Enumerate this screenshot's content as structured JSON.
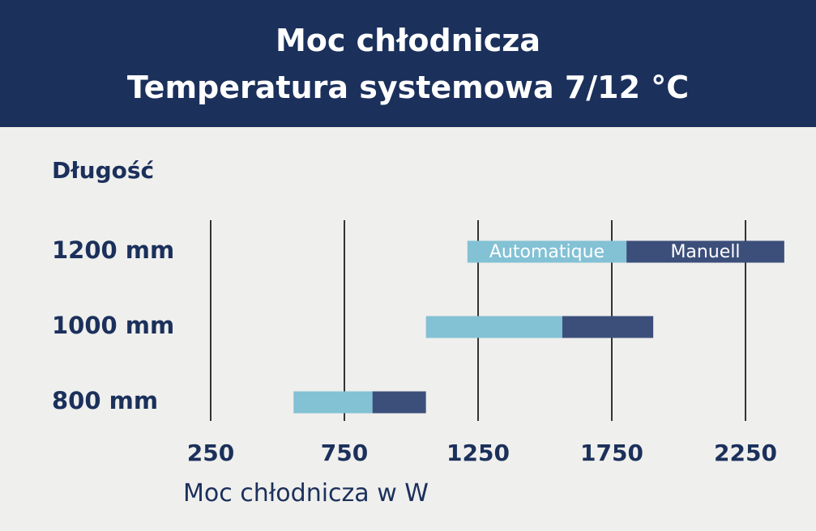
{
  "header": {
    "title_line1": "Moc chłodnicza",
    "title_line2": "Temperatura systemowa 7/12 °C"
  },
  "chart_data": {
    "type": "bar",
    "orientation": "horizontal",
    "stacked": true,
    "title": "Moc chłodnicza\nTemperatura systemowa 7/12 °C",
    "ylabel": "Długość",
    "xlabel": "Moc chłodnicza w W",
    "categories": [
      "1200 mm",
      "1000 mm",
      "800 mm"
    ],
    "series": [
      {
        "name": "Automatique",
        "color": "#83c1d4",
        "ranges": [
          [
            1210,
            1805
          ],
          [
            1055,
            1565
          ],
          [
            560,
            855
          ]
        ]
      },
      {
        "name": "Manuell",
        "color": "#3c4f7b",
        "ranges": [
          [
            1805,
            2395
          ],
          [
            1565,
            1905
          ],
          [
            855,
            1055
          ]
        ]
      }
    ],
    "xticks": [
      250,
      750,
      1250,
      1750,
      2250
    ],
    "xlim": [
      0,
      2500
    ],
    "grid": "vertical",
    "series_labels_position": "inside 1200 mm bar"
  },
  "colors": {
    "header_bg": "#1b305b",
    "page_bg": "#efefed",
    "text": "#1b305b",
    "gridline": "#333333"
  }
}
